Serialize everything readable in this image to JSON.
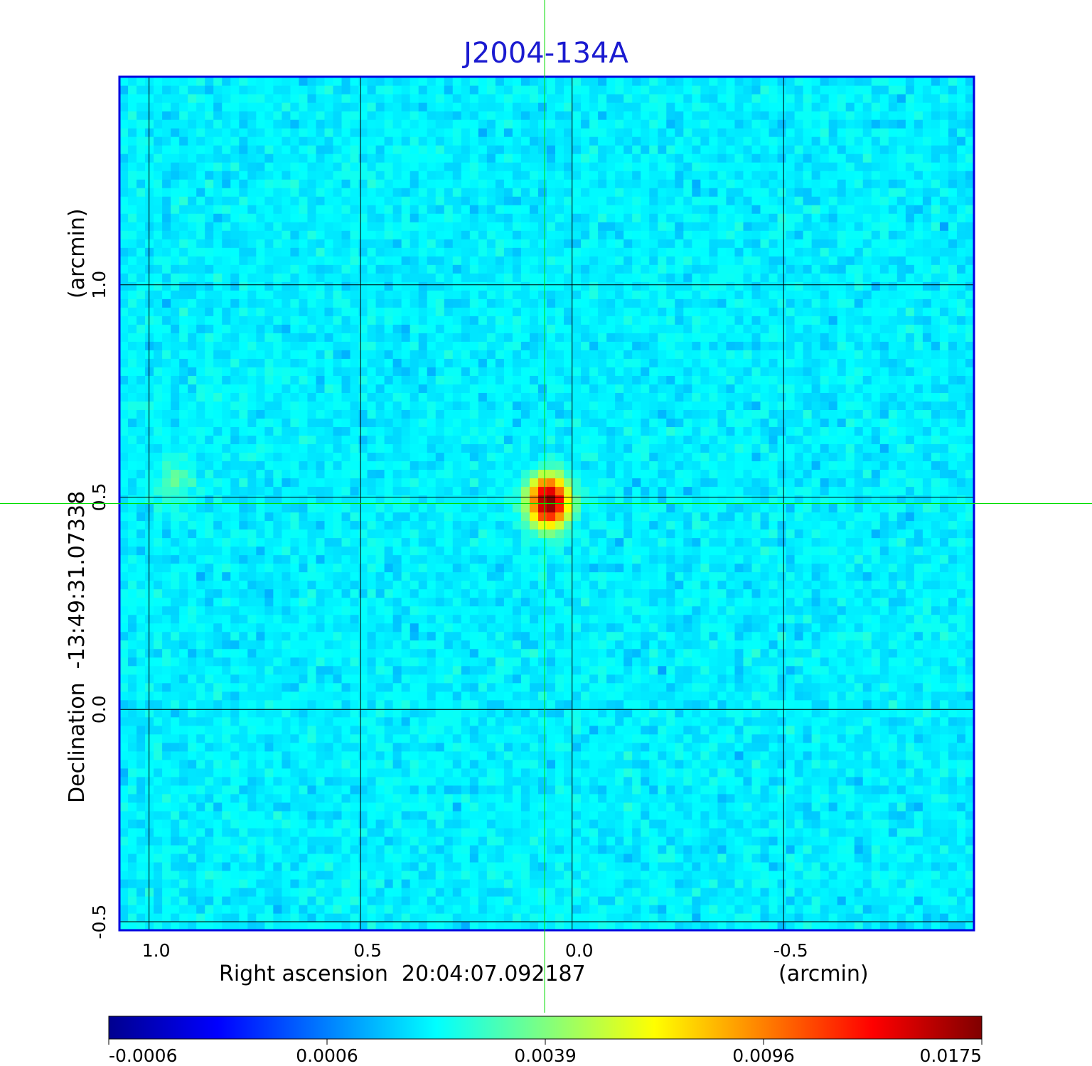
{
  "chart_data": {
    "type": "heatmap",
    "title": "J2004-134A",
    "xlabel": "Right ascension  20:04:07.092187",
    "xunit": "(arcmin)",
    "ylabel": "Declination  -13:49:31.07338",
    "yunit": "(arcmin)",
    "x_axis_reversed": true,
    "xlim": [
      1.07,
      -0.95
    ],
    "ylim": [
      -0.52,
      1.49
    ],
    "x_ticks": [
      "1.0",
      "0.5",
      "0.0",
      "-0.5"
    ],
    "y_ticks": [
      "-0.5",
      "0.0",
      "0.5",
      "1.0"
    ],
    "grid": true,
    "crosshair": {
      "x": 0.065,
      "y": 0.485,
      "color": "#00dd00"
    },
    "colormap": "jet",
    "colorbar": {
      "ticks": [
        "-0.0006",
        "0.0006",
        "0.0039",
        "0.0096",
        "0.0175"
      ],
      "range": [
        -0.0006,
        0.0175
      ]
    },
    "background_level": 0.0003,
    "sources": [
      {
        "x": 0.055,
        "y": 0.49,
        "peak": 0.0175
      },
      {
        "x": 0.94,
        "y": 0.535,
        "peak": 0.0012
      }
    ]
  }
}
